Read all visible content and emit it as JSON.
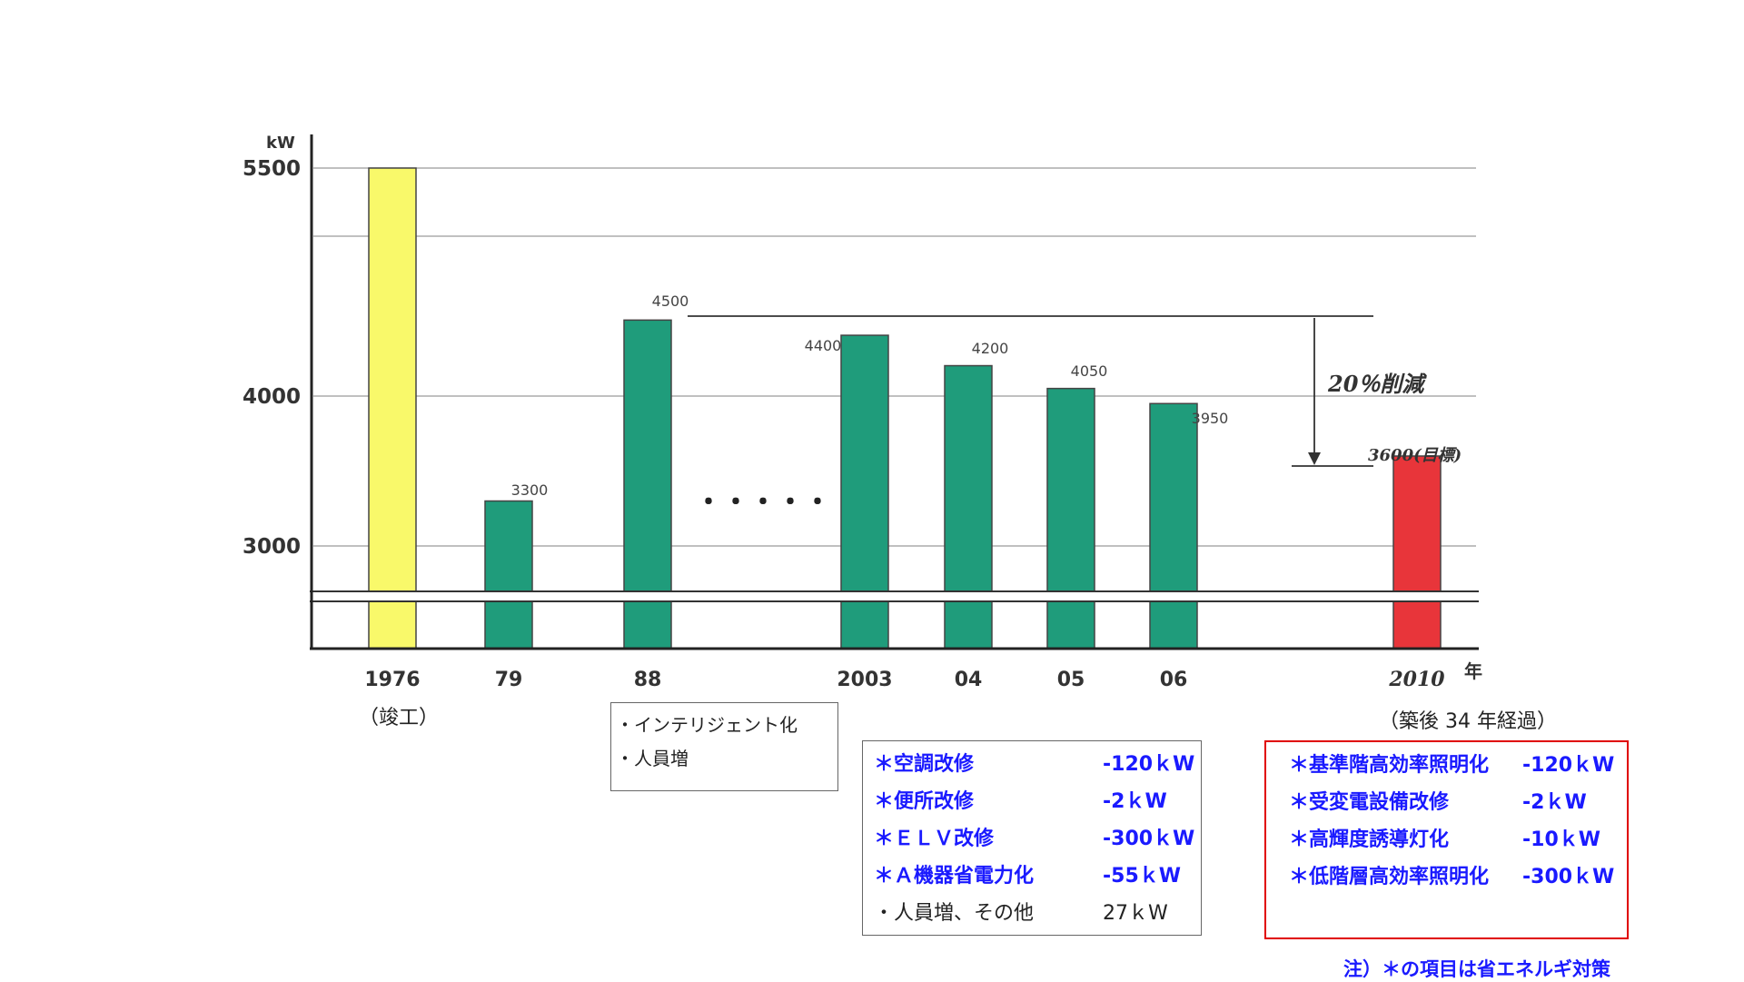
{
  "chart_data": {
    "type": "bar",
    "ylabel": "kW",
    "y_ticks": [
      "5500",
      "4000",
      "3000"
    ],
    "x_unit": "年",
    "categories": [
      "1976",
      "79",
      "88",
      "2003",
      "04",
      "05",
      "06",
      "2010"
    ],
    "values": [
      5500,
      3300,
      4500,
      4400,
      4200,
      4050,
      3950,
      3600
    ],
    "value_labels": [
      "",
      "3300",
      "4500",
      "4400",
      "4200",
      "4050",
      "3950",
      "3600(目標)"
    ],
    "bar_colors": [
      "#f9f96a",
      "#1f9c7b",
      "#1f9c7b",
      "#1f9c7b",
      "#1f9c7b",
      "#1f9c7b",
      "#1f9c7b",
      "#e8353a"
    ],
    "gap_marker": "・・・・・",
    "reduction_label": "20％削減",
    "axis_break": true,
    "grid": true
  },
  "under_labels": {
    "completion": "（竣工）",
    "elapsed": "（築後 34 年経過）"
  },
  "box_1988": {
    "items": [
      "・インテリジェント化",
      "・人員増"
    ]
  },
  "box_2003": {
    "items": [
      {
        "label": "＊空調改修",
        "value": "-120ｋW",
        "highlight": true
      },
      {
        "label": "＊便所改修",
        "value": "-2ｋW",
        "highlight": true
      },
      {
        "label": "＊ＥＬＶ改修",
        "value": "-300ｋW",
        "highlight": true
      },
      {
        "label": "＊Ａ機器省電力化",
        "value": "-55ｋW",
        "highlight": true
      },
      {
        "label": "・人員増、その他",
        "value": "27ｋW",
        "highlight": false
      }
    ]
  },
  "box_2010": {
    "items": [
      {
        "label": "＊基準階高効率照明化",
        "value": "-120ｋW"
      },
      {
        "label": "＊受変電設備改修",
        "value": "-2ｋW"
      },
      {
        "label": "＊高輝度誘導灯化",
        "value": "-10ｋW"
      },
      {
        "label": "＊低階層高効率照明化",
        "value": "-300ｋW"
      }
    ]
  },
  "footnote": "注）＊の項目は省エネルギ対策",
  "colors": {
    "accent_blue": "#1a1aff",
    "target_red": "#e8353a",
    "bar_green": "#1f9c7b",
    "base_yellow": "#f9f96a"
  }
}
